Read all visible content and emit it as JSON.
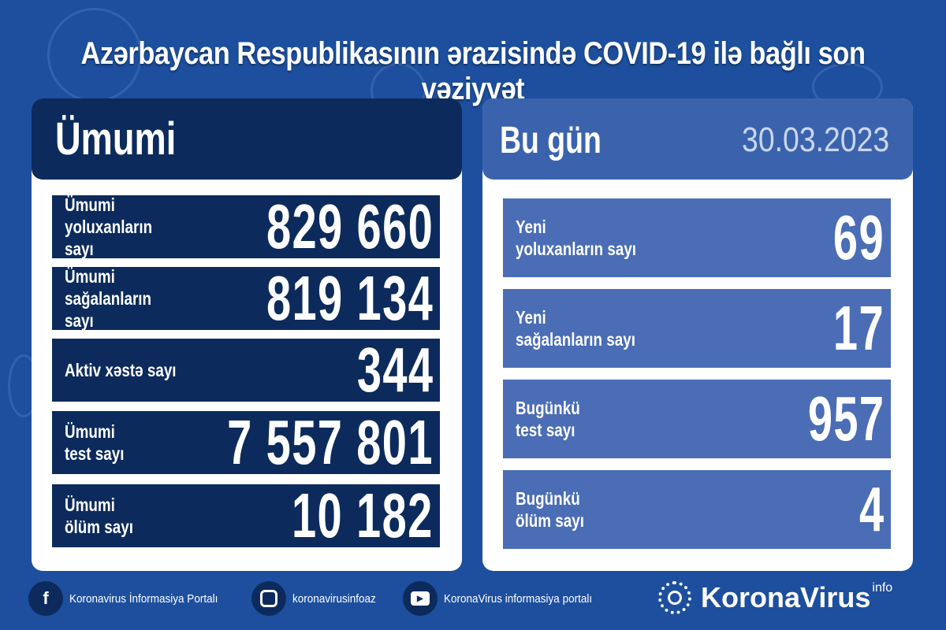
{
  "title": "Azərbaycan Respublikasının ərazisində COVID-19 ilə bağlı son vəziyyət",
  "total": {
    "heading": "Ümumi",
    "rows": [
      {
        "label": "Ümumi\nyoluxanların sayı",
        "value": "829 660"
      },
      {
        "label": "Ümumi\nsağalanların sayı",
        "value": "819 134"
      },
      {
        "label": "Aktiv xəstə sayı",
        "value": "344"
      },
      {
        "label": "Ümumi\ntest sayı",
        "value": "7 557 801"
      },
      {
        "label": "Ümumi\nölüm sayı",
        "value": "10 182"
      }
    ]
  },
  "today": {
    "heading": "Bu gün",
    "date": "30.03.2023",
    "rows": [
      {
        "label": "Yeni\nyoluxanların sayı",
        "value": "69"
      },
      {
        "label": "Yeni\nsağalanların sayı",
        "value": "17"
      },
      {
        "label": "Bugünkü\ntest sayı",
        "value": "957"
      },
      {
        "label": "Bugünkü\nölüm sayı",
        "value": "4"
      }
    ]
  },
  "footer": {
    "facebook": "Koronavirus İnformasiya Portalı",
    "instagram": "koronavirusinfoaz",
    "youtube": "KoronaVirus informasiya portalı",
    "brand": "KoronaVirus",
    "brand_sup": "info"
  }
}
